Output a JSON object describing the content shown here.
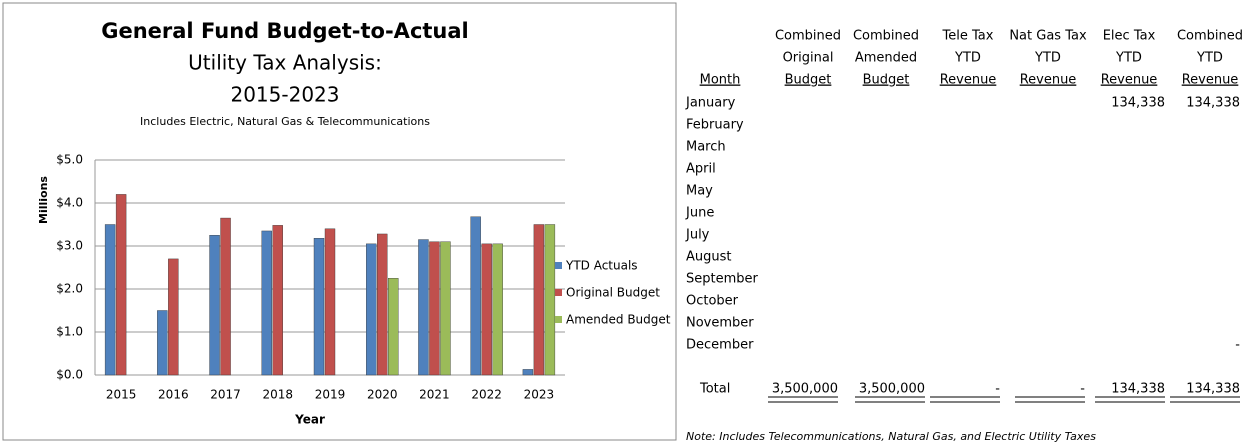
{
  "chart_data": {
    "type": "bar",
    "title": "General Fund Budget-to-Actual",
    "subtitle_lines": [
      "Utility Tax Analysis:",
      "2015-2023"
    ],
    "note": "Includes Electric, Natural Gas & Telecommunications",
    "x_label": "Year",
    "y_label": "Millions",
    "categories": [
      "2015",
      "2016",
      "2017",
      "2018",
      "2019",
      "2020",
      "2021",
      "2022",
      "2023"
    ],
    "series": [
      {
        "name": "YTD Actuals",
        "color": "#4f81bd",
        "values": [
          3.5,
          1.5,
          3.25,
          3.35,
          3.18,
          3.05,
          3.15,
          3.68,
          0.13
        ]
      },
      {
        "name": "Original Budget",
        "color": "#c0504d",
        "values": [
          4.2,
          2.7,
          3.65,
          3.48,
          3.4,
          3.28,
          3.1,
          3.05,
          3.5
        ]
      },
      {
        "name": "Amended Budget",
        "color": "#9bbb59",
        "values": [
          null,
          null,
          null,
          null,
          null,
          2.25,
          3.1,
          3.05,
          3.5
        ]
      }
    ],
    "ylim": [
      0,
      5
    ],
    "yticks": [
      {
        "value": 0,
        "label": "$0.0"
      },
      {
        "value": 1,
        "label": "$1.0"
      },
      {
        "value": 2,
        "label": "$2.0"
      },
      {
        "value": 3,
        "label": "$3.0"
      },
      {
        "value": 4,
        "label": "$4.0"
      },
      {
        "value": 5,
        "label": "$5.0"
      }
    ],
    "grid": true,
    "legend": "right"
  },
  "table": {
    "headers": [
      [
        "Month"
      ],
      [
        "Combined",
        "Original",
        "Budget"
      ],
      [
        "Combined",
        "Amended",
        "Budget"
      ],
      [
        "Tele Tax",
        "YTD",
        "Revenue"
      ],
      [
        "Nat Gas Tax",
        "YTD",
        "Revenue"
      ],
      [
        "Elec Tax",
        "YTD",
        "Revenue"
      ],
      [
        "Combined",
        "YTD",
        "Revenue"
      ]
    ],
    "rows": [
      [
        "January",
        null,
        null,
        null,
        null,
        "134,338",
        "134,338"
      ],
      [
        "February",
        null,
        null,
        null,
        null,
        null,
        null
      ],
      [
        "March",
        null,
        null,
        null,
        null,
        null,
        null
      ],
      [
        "April",
        null,
        null,
        null,
        null,
        null,
        null
      ],
      [
        "May",
        null,
        null,
        null,
        null,
        null,
        null
      ],
      [
        "June",
        null,
        null,
        null,
        null,
        null,
        null
      ],
      [
        "July",
        null,
        null,
        null,
        null,
        null,
        null
      ],
      [
        "August",
        null,
        null,
        null,
        null,
        null,
        null
      ],
      [
        "September",
        null,
        null,
        null,
        null,
        null,
        null
      ],
      [
        "October",
        null,
        null,
        null,
        null,
        null,
        null
      ],
      [
        "November",
        null,
        null,
        null,
        null,
        null,
        null
      ],
      [
        "December",
        null,
        null,
        null,
        null,
        null,
        "-"
      ]
    ],
    "total": [
      "Total",
      "3,500,000",
      "3,500,000",
      "-",
      "-",
      "134,338",
      "134,338"
    ],
    "note": "Note: Includes Telecommunications, Natural Gas, and Electric Utility Taxes"
  }
}
